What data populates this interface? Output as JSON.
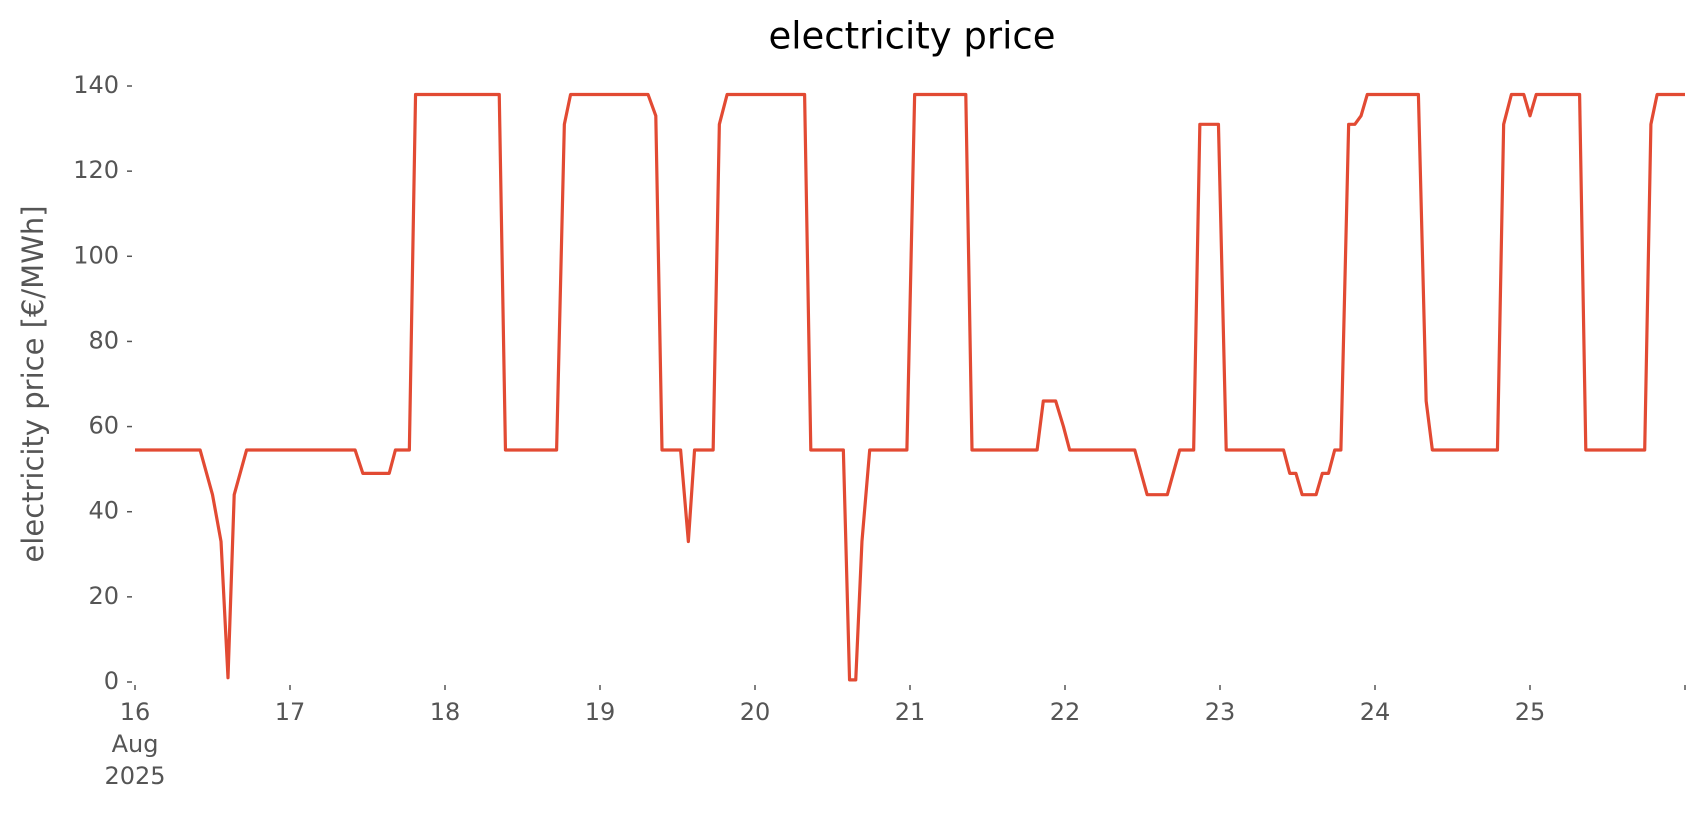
{
  "chart_data": {
    "type": "line",
    "title": "electricity price",
    "y_label": "electricity price [€/MWh]",
    "x": [
      16.0,
      16.42,
      16.5,
      16.555,
      16.6,
      16.64,
      16.72,
      17.42,
      17.47,
      17.64,
      17.68,
      17.77,
      17.81,
      18.35,
      18.39,
      18.72,
      18.77,
      18.81,
      19.31,
      19.36,
      19.4,
      19.52,
      19.57,
      19.61,
      19.73,
      19.77,
      19.82,
      20.32,
      20.36,
      20.57,
      20.61,
      20.65,
      20.69,
      20.74,
      20.98,
      21.03,
      21.36,
      21.4,
      21.82,
      21.86,
      21.94,
      21.99,
      22.03,
      22.45,
      22.53,
      22.66,
      22.74,
      22.83,
      22.87,
      22.99,
      23.04,
      23.41,
      23.45,
      23.49,
      23.53,
      23.62,
      23.66,
      23.7,
      23.74,
      23.78,
      23.83,
      23.87,
      23.91,
      23.95,
      24.28,
      24.33,
      24.37,
      24.79,
      24.83,
      24.88,
      24.96,
      25.0,
      25.04,
      25.32,
      25.36,
      25.74,
      25.78,
      25.82,
      26.0
    ],
    "series": [
      {
        "name": "electricity price",
        "color": "#E24A33",
        "values": [
          54.5,
          54.5,
          44,
          33,
          1,
          44,
          54.5,
          54.5,
          49,
          49,
          54.5,
          54.5,
          138,
          138,
          54.5,
          54.5,
          131,
          138,
          138,
          133,
          54.5,
          54.5,
          33,
          54.5,
          54.5,
          131,
          138,
          138,
          54.5,
          54.5,
          0.5,
          0.5,
          33,
          54.5,
          54.5,
          138,
          138,
          54.5,
          54.5,
          66,
          66,
          60,
          54.5,
          54.5,
          44,
          44,
          54.5,
          54.5,
          131,
          131,
          54.5,
          54.5,
          49,
          49,
          44,
          44,
          49,
          49,
          54.5,
          54.5,
          131,
          131,
          133,
          138,
          138,
          66,
          54.5,
          54.5,
          131,
          138,
          138,
          133,
          138,
          138,
          54.5,
          54.5,
          131,
          138,
          138
        ]
      }
    ],
    "xlim": [
      16,
      26
    ],
    "xticks": [
      {
        "value": 16,
        "label": "16\nAug\n2025"
      },
      17,
      18,
      19,
      20,
      21,
      22,
      23,
      24,
      25,
      {
        "value": 26,
        "label": null
      }
    ],
    "ylim": [
      0,
      140
    ],
    "yticks": [
      0,
      20,
      40,
      60,
      80,
      100,
      120,
      140
    ],
    "grid": false
  }
}
